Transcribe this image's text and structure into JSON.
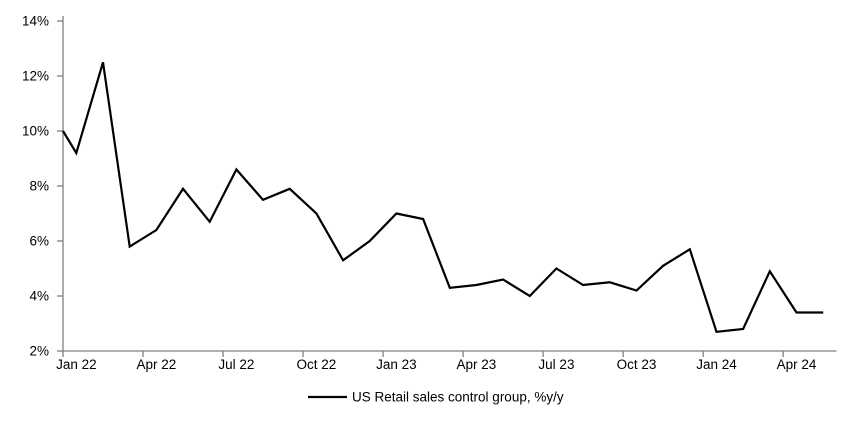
{
  "chart_data": {
    "type": "line",
    "title": "",
    "x": [
      "Jan 22",
      "Feb 22",
      "Mar 22",
      "Apr 22",
      "May 22",
      "Jun 22",
      "Jul 22",
      "Aug 22",
      "Sep 22",
      "Oct 22",
      "Nov 22",
      "Dec 22",
      "Jan 23",
      "Feb 23",
      "Mar 23",
      "Apr 23",
      "May 23",
      "Jun 23",
      "Jul 23",
      "Aug 23",
      "Sep 23",
      "Oct 23",
      "Nov 23",
      "Dec 23",
      "Jan 24",
      "Feb 24",
      "Mar 24",
      "Apr 24",
      "May 24"
    ],
    "series": [
      {
        "name": "US Retail sales control group, %y/y",
        "color": "#000000",
        "values": [
          9.2,
          12.5,
          5.8,
          6.4,
          7.9,
          6.7,
          8.6,
          7.5,
          7.9,
          7.0,
          5.3,
          6.0,
          7.0,
          6.8,
          4.3,
          4.4,
          4.6,
          4.0,
          5.0,
          4.4,
          4.5,
          4.2,
          5.1,
          5.7,
          2.7,
          2.8,
          4.9,
          3.4,
          3.4
        ]
      }
    ],
    "left_edge_entry_pct": 10.0,
    "ylim": [
      2,
      14
    ],
    "y_tick_values": [
      14,
      12,
      10,
      8,
      6,
      4,
      2
    ],
    "y_tick_labels": [
      "14%",
      "12%",
      "10%",
      "8%",
      "6%",
      "4%",
      "2%"
    ],
    "x_tick_labels": [
      "Jan 22",
      "Apr 22",
      "Jul 22",
      "Oct 22",
      "Jan 23",
      "Apr 23",
      "Jul 23",
      "Oct 23",
      "Jan 24",
      "Apr 24"
    ],
    "x_tick_interval_months": 3,
    "grid": "off",
    "legend_position": "bottom-center",
    "colors": {
      "axis": "#808080",
      "line": "#000000",
      "text": "#000000",
      "background": "#ffffff"
    }
  }
}
